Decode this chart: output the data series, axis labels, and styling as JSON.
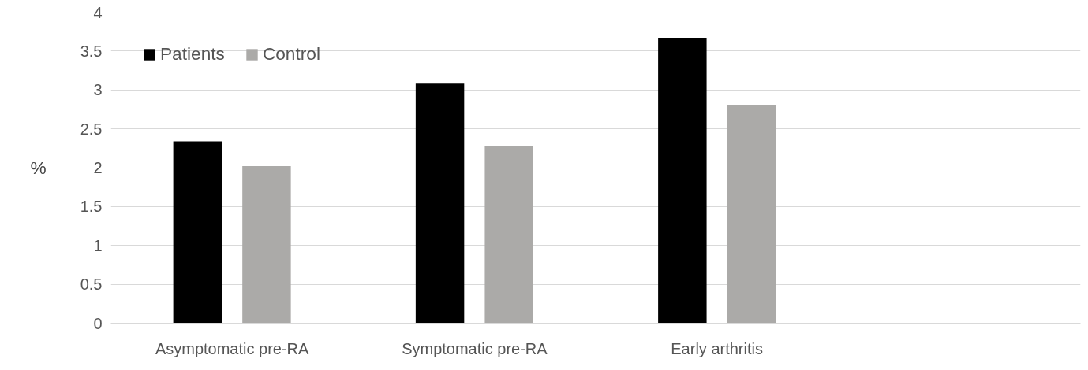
{
  "chart_data": {
    "type": "bar",
    "ylabel": "%",
    "categories": [
      "Asymptomatic pre-RA",
      "Symptomatic pre-RA",
      "Early arthritis",
      null
    ],
    "series": [
      {
        "name": "Patients",
        "color": "#000000",
        "values": [
          2.34,
          3.08,
          3.67,
          null
        ]
      },
      {
        "name": "Control",
        "color": "#abaaa8",
        "values": [
          2.02,
          2.28,
          2.81,
          null
        ]
      }
    ],
    "ylim": [
      0,
      4
    ],
    "yticks": [
      0,
      0.5,
      1,
      1.5,
      2,
      2.5,
      3,
      3.5,
      4
    ],
    "grid": "y",
    "legend": "top left"
  }
}
